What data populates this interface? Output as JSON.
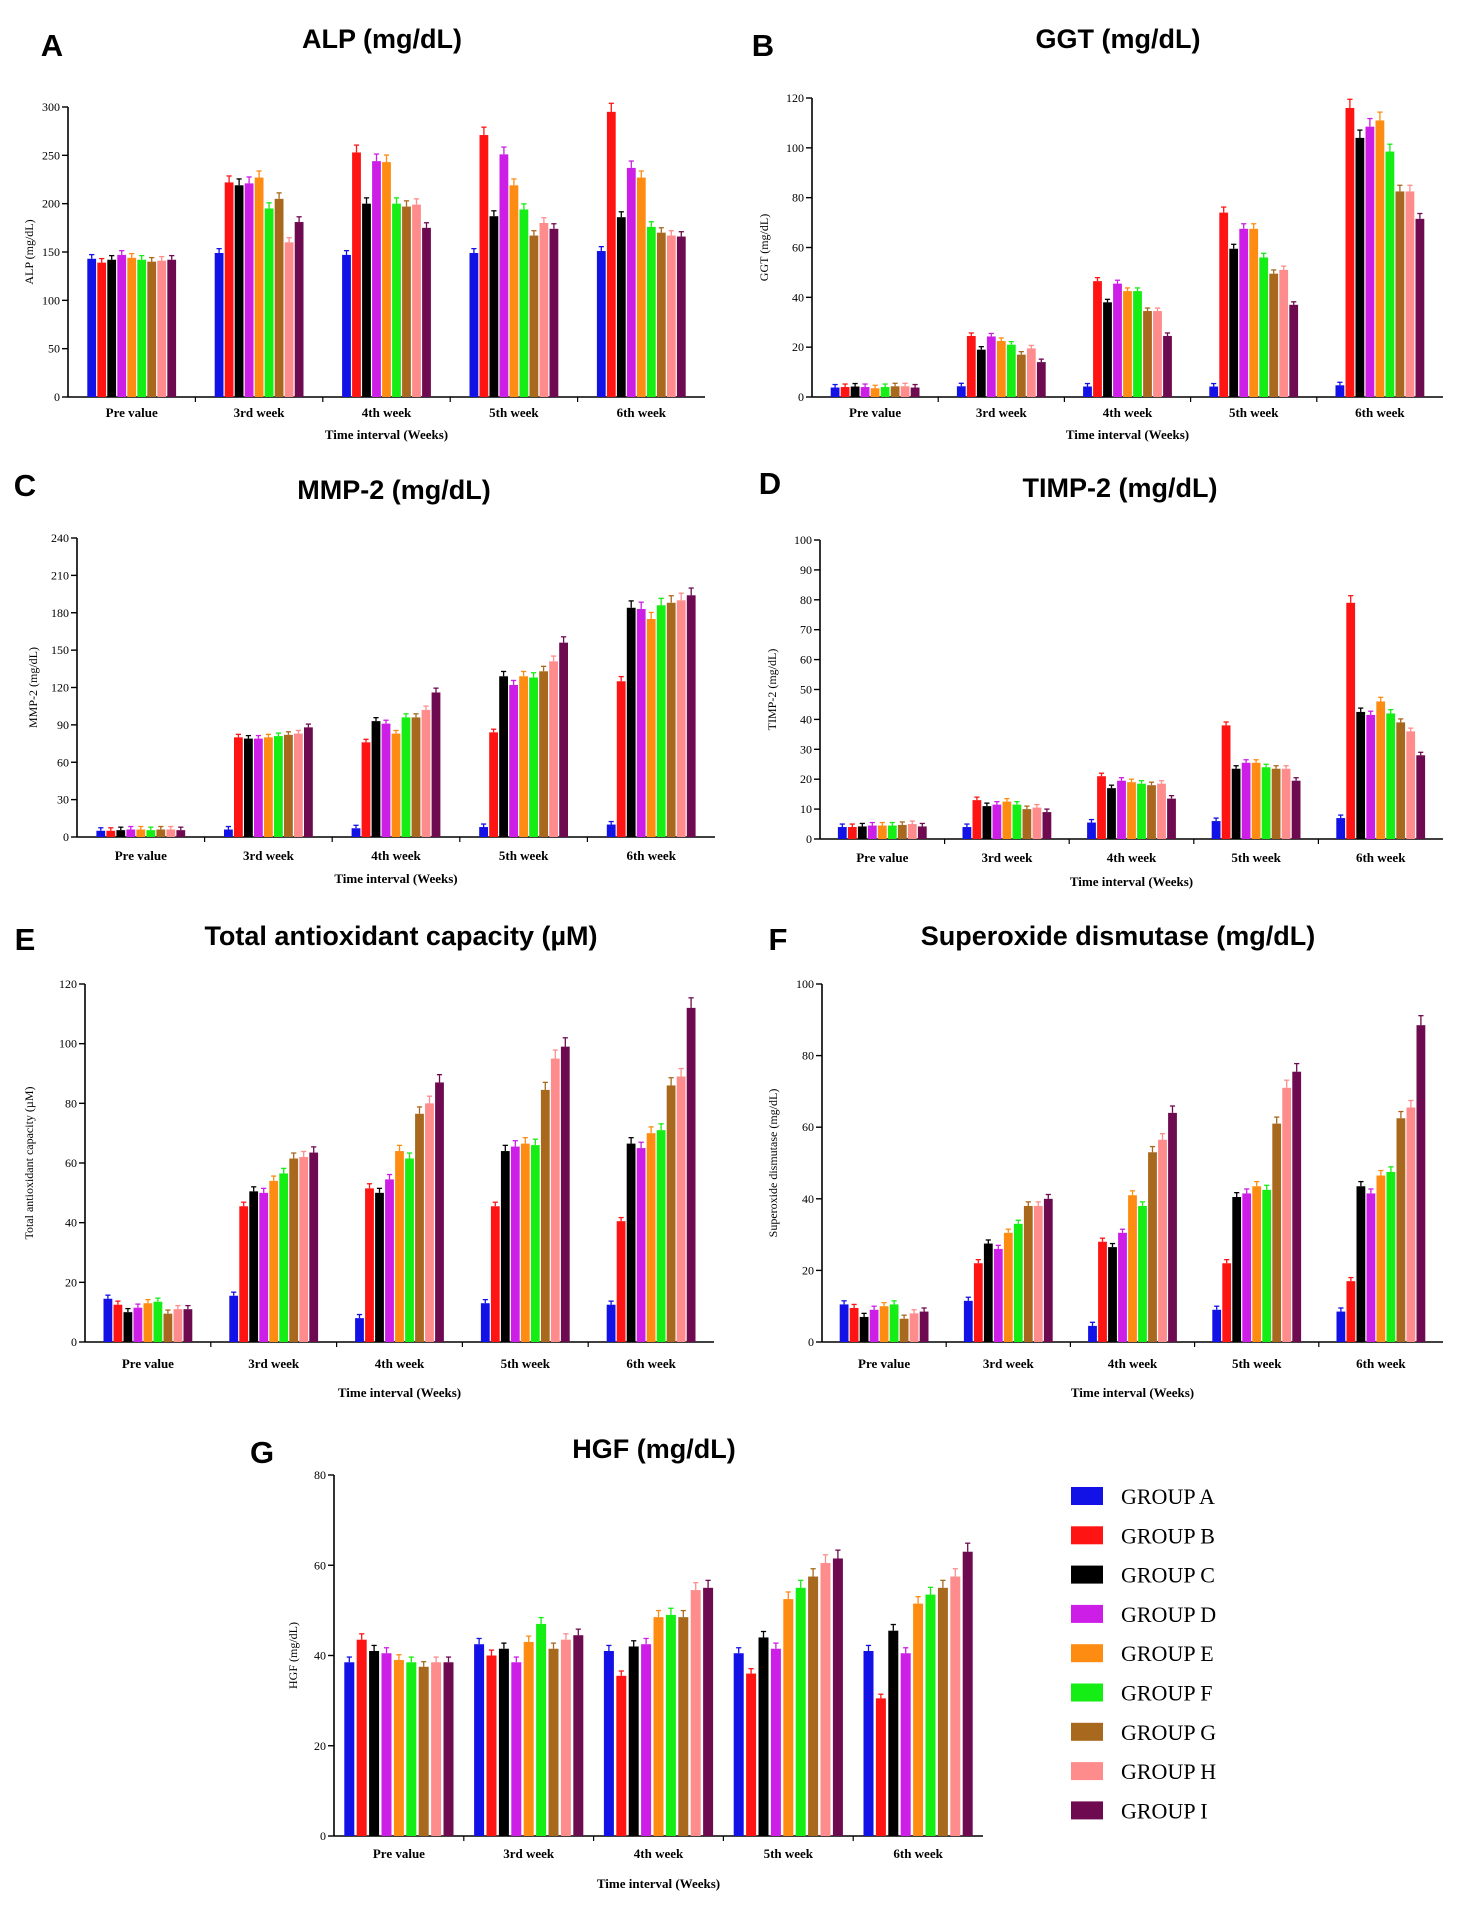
{
  "chart_data": [
    {
      "type": "bar",
      "panel": "A",
      "title": "ALP (mg/dL)",
      "xlabel": "Time interval (Weeks)",
      "ylabel": "ALP (mg/dL)",
      "ylim": [
        0,
        300
      ],
      "yticks": [
        0,
        50,
        100,
        150,
        200,
        250,
        300
      ],
      "categories": [
        "Pre value",
        "3rd week",
        "4th week",
        "5th week",
        "6th week"
      ],
      "series": [
        {
          "name": "GROUP A",
          "values": [
            143,
            149,
            147,
            149,
            151
          ]
        },
        {
          "name": "GROUP B",
          "values": [
            139,
            222,
            253,
            271,
            295
          ]
        },
        {
          "name": "GROUP C",
          "values": [
            142,
            219,
            200,
            187,
            186
          ]
        },
        {
          "name": "GROUP D",
          "values": [
            147,
            221,
            244,
            251,
            237
          ]
        },
        {
          "name": "GROUP E",
          "values": [
            144,
            227,
            243,
            219,
            227
          ]
        },
        {
          "name": "GROUP F",
          "values": [
            142,
            195,
            200,
            194,
            176
          ]
        },
        {
          "name": "GROUP G",
          "values": [
            140,
            205,
            197,
            167,
            170
          ]
        },
        {
          "name": "GROUP H",
          "values": [
            141,
            160,
            199,
            180,
            167
          ]
        },
        {
          "name": "GROUP I",
          "values": [
            142,
            181,
            175,
            174,
            166
          ]
        }
      ]
    },
    {
      "type": "bar",
      "panel": "B",
      "title": "GGT (mg/dL)",
      "xlabel": "Time interval (Weeks)",
      "ylabel": "GGT (mg/dL)",
      "ylim": [
        0,
        120
      ],
      "yticks": [
        0,
        20,
        40,
        60,
        80,
        100,
        120
      ],
      "categories": [
        "Pre value",
        "3rd week",
        "4th week",
        "5th week",
        "6th week"
      ],
      "series": [
        {
          "name": "GROUP A",
          "values": [
            3.8,
            4.3,
            4.2,
            4.2,
            4.7
          ]
        },
        {
          "name": "GROUP B",
          "values": [
            4,
            24.5,
            46.5,
            74,
            116
          ]
        },
        {
          "name": "GROUP C",
          "values": [
            4.2,
            19,
            38,
            59.5,
            104
          ]
        },
        {
          "name": "GROUP D",
          "values": [
            4,
            24.3,
            45.5,
            67.5,
            108.5
          ]
        },
        {
          "name": "GROUP E",
          "values": [
            3.5,
            22.5,
            42.5,
            67.5,
            111
          ]
        },
        {
          "name": "GROUP F",
          "values": [
            4,
            21,
            42.5,
            56,
            98.5
          ]
        },
        {
          "name": "GROUP G",
          "values": [
            4.3,
            17,
            34.5,
            49.5,
            82.5
          ]
        },
        {
          "name": "GROUP H",
          "values": [
            4.3,
            19.5,
            34.5,
            51,
            82.5
          ]
        },
        {
          "name": "GROUP I",
          "values": [
            3.8,
            14,
            24.5,
            37,
            71.5
          ]
        }
      ]
    },
    {
      "type": "bar",
      "panel": "C",
      "title": "MMP-2 (mg/dL)",
      "xlabel": "Time interval (Weeks)",
      "ylabel": "MMP-2 (mg/dL)",
      "ylim": [
        0,
        240
      ],
      "yticks": [
        0,
        30,
        60,
        90,
        120,
        150,
        180,
        210,
        240
      ],
      "categories": [
        "Pre value",
        "3rd week",
        "4th week",
        "5th week",
        "6th week"
      ],
      "series": [
        {
          "name": "GROUP A",
          "values": [
            5,
            6,
            7,
            8,
            10
          ]
        },
        {
          "name": "GROUP B",
          "values": [
            5,
            80,
            76,
            84,
            125
          ]
        },
        {
          "name": "GROUP C",
          "values": [
            5.5,
            79,
            93,
            129,
            184
          ]
        },
        {
          "name": "GROUP D",
          "values": [
            6,
            79,
            91,
            122,
            183
          ]
        },
        {
          "name": "GROUP E",
          "values": [
            6,
            80,
            83,
            129,
            175
          ]
        },
        {
          "name": "GROUP F",
          "values": [
            5.5,
            81,
            96,
            128,
            186
          ]
        },
        {
          "name": "GROUP G",
          "values": [
            6,
            82,
            96,
            133,
            188
          ]
        },
        {
          "name": "GROUP H",
          "values": [
            6,
            83,
            102,
            141,
            190
          ]
        },
        {
          "name": "GROUP I",
          "values": [
            5.5,
            88,
            116,
            156,
            194
          ]
        }
      ]
    },
    {
      "type": "bar",
      "panel": "D",
      "title": "TIMP-2 (mg/dL)",
      "xlabel": "Time interval (Weeks)",
      "ylabel": "TIMP-2 (mg/dL)",
      "ylim": [
        0,
        100
      ],
      "yticks": [
        0,
        10,
        20,
        30,
        40,
        50,
        60,
        70,
        80,
        90,
        100
      ],
      "categories": [
        "Pre value",
        "3rd week",
        "4th week",
        "5th week",
        "6th week"
      ],
      "series": [
        {
          "name": "GROUP A",
          "values": [
            4,
            4,
            5.5,
            6,
            7
          ]
        },
        {
          "name": "GROUP B",
          "values": [
            4,
            13,
            21,
            38,
            79
          ]
        },
        {
          "name": "GROUP C",
          "values": [
            4.2,
            11,
            17,
            23.5,
            42.5
          ]
        },
        {
          "name": "GROUP D",
          "values": [
            4.5,
            11.5,
            19.5,
            25.5,
            41.5
          ]
        },
        {
          "name": "GROUP E",
          "values": [
            4.5,
            12.5,
            19,
            25.5,
            46
          ]
        },
        {
          "name": "GROUP F",
          "values": [
            4.5,
            11.5,
            18.5,
            24,
            42
          ]
        },
        {
          "name": "GROUP G",
          "values": [
            4.7,
            10,
            18,
            23.5,
            39
          ]
        },
        {
          "name": "GROUP H",
          "values": [
            5,
            10.5,
            18.5,
            23.5,
            36
          ]
        },
        {
          "name": "GROUP I",
          "values": [
            4.2,
            9,
            13.5,
            19.5,
            28
          ]
        }
      ]
    },
    {
      "type": "bar",
      "panel": "E",
      "title": "Total antioxidant capacity (µM)",
      "xlabel": "Time interval (Weeks)",
      "ylabel": "Total antioxidant capacity  (µM)",
      "ylim": [
        0,
        120
      ],
      "yticks": [
        0,
        20,
        40,
        60,
        80,
        100,
        120
      ],
      "categories": [
        "Pre value",
        "3rd week",
        "4th week",
        "5th week",
        "6th week"
      ],
      "series": [
        {
          "name": "GROUP A",
          "values": [
            14.5,
            15.5,
            8,
            13,
            12.5
          ]
        },
        {
          "name": "GROUP B",
          "values": [
            12.5,
            45.5,
            51.5,
            45.5,
            40.5
          ]
        },
        {
          "name": "GROUP C",
          "values": [
            10,
            50.5,
            50,
            64,
            66.5
          ]
        },
        {
          "name": "GROUP D",
          "values": [
            11.5,
            50,
            54.5,
            65.5,
            65
          ]
        },
        {
          "name": "GROUP E",
          "values": [
            13,
            54,
            64,
            66.5,
            70
          ]
        },
        {
          "name": "GROUP F",
          "values": [
            13.5,
            56.5,
            61.5,
            66,
            71
          ]
        },
        {
          "name": "GROUP G",
          "values": [
            9.5,
            61.5,
            76.5,
            84.5,
            86
          ]
        },
        {
          "name": "GROUP H",
          "values": [
            11,
            62,
            80,
            95,
            89
          ]
        },
        {
          "name": "GROUP I",
          "values": [
            11,
            63.5,
            87,
            99,
            112
          ]
        }
      ]
    },
    {
      "type": "bar",
      "panel": "F",
      "title": "Superoxide dismutase (mg/dL)",
      "xlabel": "Time interval (Weeks)",
      "ylabel": "Superoxide dismutase (mg/dL)",
      "ylim": [
        0,
        100
      ],
      "yticks": [
        0,
        20,
        40,
        60,
        80,
        100
      ],
      "categories": [
        "Pre value",
        "3rd week",
        "4th week",
        "5th week",
        "6th week"
      ],
      "series": [
        {
          "name": "GROUP A",
          "values": [
            10.5,
            11.5,
            4.5,
            9,
            8.5
          ]
        },
        {
          "name": "GROUP B",
          "values": [
            9.5,
            22,
            28,
            22,
            17
          ]
        },
        {
          "name": "GROUP C",
          "values": [
            7,
            27.5,
            26.5,
            40.5,
            43.5
          ]
        },
        {
          "name": "GROUP D",
          "values": [
            9,
            26,
            30.5,
            41.5,
            41.5
          ]
        },
        {
          "name": "GROUP E",
          "values": [
            10,
            30.5,
            41,
            43.5,
            46.5
          ]
        },
        {
          "name": "GROUP F",
          "values": [
            10.5,
            33,
            38,
            42.5,
            47.5
          ]
        },
        {
          "name": "GROUP G",
          "values": [
            6.5,
            38,
            53,
            61,
            62.5
          ]
        },
        {
          "name": "GROUP H",
          "values": [
            8,
            38,
            56.5,
            71,
            65.5
          ]
        },
        {
          "name": "GROUP I",
          "values": [
            8.5,
            40,
            64,
            75.5,
            88.5
          ]
        }
      ]
    },
    {
      "type": "bar",
      "panel": "G",
      "title": "HGF (mg/dL)",
      "xlabel": "Time interval (Weeks)",
      "ylabel": "HGF (mg/dL)",
      "ylim": [
        0,
        80
      ],
      "yticks": [
        0,
        20,
        40,
        60,
        80
      ],
      "categories": [
        "Pre value",
        "3rd week",
        "4th week",
        "5th week",
        "6th week"
      ],
      "series": [
        {
          "name": "GROUP A",
          "values": [
            38.5,
            42.5,
            41,
            40.5,
            41
          ]
        },
        {
          "name": "GROUP B",
          "values": [
            43.5,
            40,
            35.5,
            36,
            30.5
          ]
        },
        {
          "name": "GROUP C",
          "values": [
            41,
            41.5,
            42,
            44,
            45.5
          ]
        },
        {
          "name": "GROUP D",
          "values": [
            40.5,
            38.5,
            42.5,
            41.5,
            40.5
          ]
        },
        {
          "name": "GROUP E",
          "values": [
            39,
            43,
            48.5,
            52.5,
            51.5
          ]
        },
        {
          "name": "GROUP F",
          "values": [
            38.5,
            47,
            49,
            55,
            53.5
          ]
        },
        {
          "name": "GROUP G",
          "values": [
            37.5,
            41.5,
            48.5,
            57.5,
            55
          ]
        },
        {
          "name": "GROUP H",
          "values": [
            38.5,
            43.5,
            54.5,
            60.5,
            57.5
          ]
        },
        {
          "name": "GROUP I",
          "values": [
            38.5,
            44.5,
            55,
            61.5,
            63
          ]
        }
      ]
    }
  ],
  "legend": {
    "items": [
      "GROUP A",
      "GROUP B",
      "GROUP C",
      "GROUP D",
      "GROUP E",
      "GROUP F",
      "GROUP G",
      "GROUP H",
      "GROUP I"
    ],
    "colors": [
      "#1212e6",
      "#ff1414",
      "#000000",
      "#cc1ee6",
      "#ff8c12",
      "#14ee14",
      "#a8681e",
      "#ff8c8c",
      "#6e0a50"
    ]
  }
}
